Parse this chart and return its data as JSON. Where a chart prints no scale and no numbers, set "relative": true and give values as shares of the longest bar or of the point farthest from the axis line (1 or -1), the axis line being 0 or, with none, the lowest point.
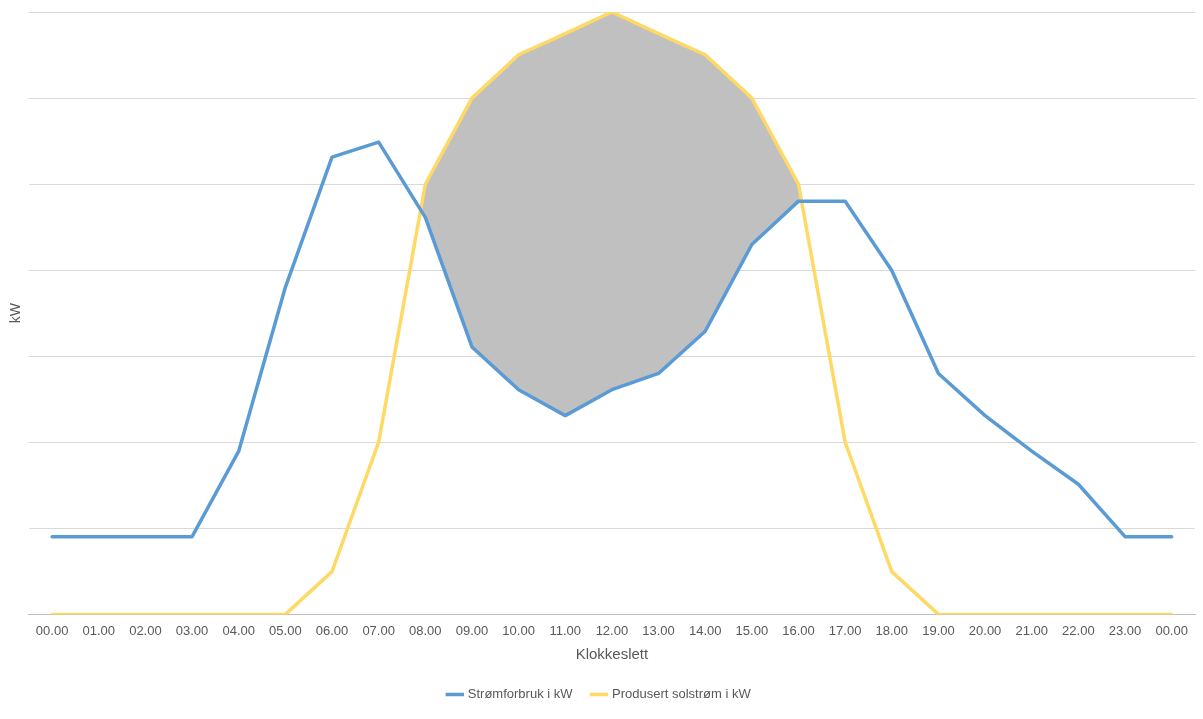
{
  "chart_data": {
    "type": "line",
    "relative": true,
    "xlabel": "Klokkeslett",
    "ylabel": "kW",
    "grid": "y",
    "legend": "bottom",
    "marker": "none",
    "line_style": "solid",
    "categories": [
      "00.00",
      "01.00",
      "02.00",
      "03.00",
      "04.00",
      "05.00",
      "06.00",
      "07.00",
      "08.00",
      "09.00",
      "10.00",
      "11.00",
      "12.00",
      "13.00",
      "14.00",
      "15.00",
      "16.00",
      "17.00",
      "18.00",
      "19.00",
      "20.00",
      "21.00",
      "22.00",
      "23.00",
      "00.00"
    ],
    "series": [
      {
        "name": "Strømforbruk i kW",
        "color": "#5b9bd5",
        "values": [
          0.129,
          0.129,
          0.129,
          0.129,
          0.271,
          0.543,
          0.759,
          0.784,
          0.659,
          0.444,
          0.373,
          0.33,
          0.373,
          0.4,
          0.47,
          0.614,
          0.686,
          0.686,
          0.571,
          0.4,
          0.33,
          0.271,
          0.216,
          0.129,
          0.129
        ]
      },
      {
        "name": "Produsert solstrøm i kW",
        "color": "#ffd966",
        "values": [
          0,
          0,
          0,
          0,
          0,
          0,
          0.071,
          0.286,
          0.714,
          0.857,
          0.929,
          0.964,
          1,
          0.964,
          0.929,
          0.857,
          0.714,
          0.286,
          0.071,
          0,
          0,
          0,
          0,
          0,
          0
        ]
      }
    ]
  }
}
